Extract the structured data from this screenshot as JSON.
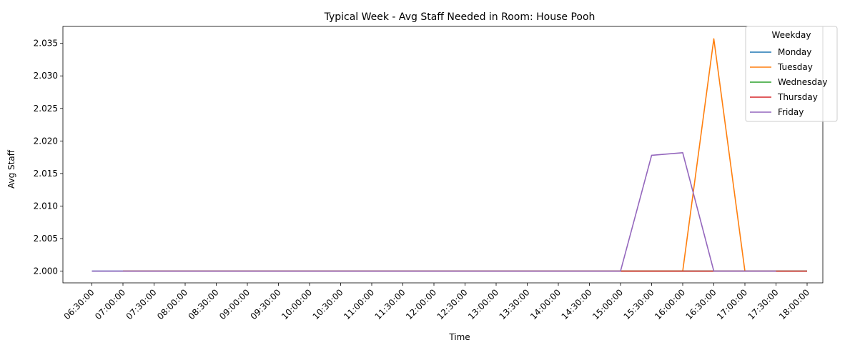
{
  "chart_data": {
    "type": "line",
    "title": "Typical Week - Avg Staff Needed in Room: House Pooh",
    "xlabel": "Time",
    "ylabel": "Avg Staff",
    "categories": [
      "06:30:00",
      "07:00:00",
      "07:30:00",
      "08:00:00",
      "08:30:00",
      "09:00:00",
      "09:30:00",
      "10:00:00",
      "10:30:00",
      "11:00:00",
      "11:30:00",
      "12:00:00",
      "12:30:00",
      "13:00:00",
      "13:30:00",
      "14:00:00",
      "14:30:00",
      "15:00:00",
      "15:30:00",
      "16:00:00",
      "16:30:00",
      "17:00:00",
      "17:30:00",
      "18:00:00"
    ],
    "ylim": [
      1.9982,
      2.0376
    ],
    "yticks": [
      2.0,
      2.005,
      2.01,
      2.015,
      2.02,
      2.025,
      2.03,
      2.035
    ],
    "ytick_labels": [
      "2.000",
      "2.005",
      "2.010",
      "2.015",
      "2.020",
      "2.025",
      "2.030",
      "2.035"
    ],
    "grid": false,
    "legend": {
      "title": "Weekday",
      "placement": "top-right"
    },
    "series": [
      {
        "name": "Monday",
        "color": "#1f77b4",
        "values": [
          2.0,
          2.0,
          2.0,
          2.0,
          2.0,
          2.0,
          2.0,
          2.0,
          2.0,
          2.0,
          2.0,
          2.0,
          2.0,
          2.0,
          2.0,
          2.0,
          2.0,
          2.0,
          2.0,
          2.0,
          2.0,
          2.0,
          2.0,
          2.0
        ]
      },
      {
        "name": "Tuesday",
        "color": "#ff7f0e",
        "values": [
          null,
          2.0,
          2.0,
          2.0,
          2.0,
          2.0,
          2.0,
          2.0,
          2.0,
          2.0,
          2.0,
          2.0,
          2.0,
          2.0,
          2.0,
          2.0,
          2.0,
          2.0,
          2.0,
          2.0,
          2.0357,
          2.0,
          null,
          null
        ]
      },
      {
        "name": "Wednesday",
        "color": "#2ca02c",
        "values": [
          null,
          2.0,
          2.0,
          2.0,
          2.0,
          2.0,
          2.0,
          2.0,
          2.0,
          2.0,
          2.0,
          2.0,
          2.0,
          2.0,
          2.0,
          2.0,
          2.0,
          2.0,
          2.0,
          2.0,
          2.0,
          2.0,
          2.0,
          2.0
        ]
      },
      {
        "name": "Thursday",
        "color": "#d62728",
        "values": [
          null,
          2.0,
          2.0,
          2.0,
          2.0,
          2.0,
          2.0,
          2.0,
          2.0,
          2.0,
          2.0,
          2.0,
          2.0,
          2.0,
          2.0,
          2.0,
          2.0,
          2.0,
          2.0,
          2.0,
          2.0,
          2.0,
          2.0,
          2.0
        ]
      },
      {
        "name": "Friday",
        "color": "#9467bd",
        "values": [
          2.0,
          2.0,
          2.0,
          2.0,
          2.0,
          2.0,
          2.0,
          2.0,
          2.0,
          2.0,
          2.0,
          2.0,
          2.0,
          2.0,
          2.0,
          2.0,
          2.0,
          2.0,
          2.0178,
          2.0182,
          2.0,
          2.0,
          2.0,
          null
        ]
      }
    ]
  }
}
